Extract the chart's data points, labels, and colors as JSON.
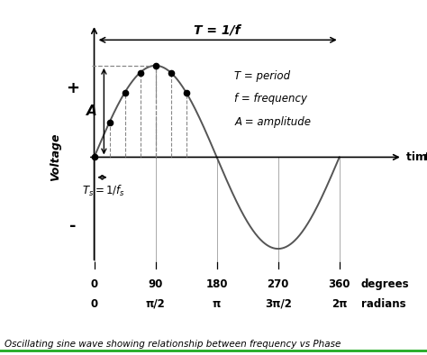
{
  "title": "Oscillating sine wave showing relationship between frequency vs Phase",
  "ylabel": "Voltage",
  "xlabel_time": "time,  t",
  "bg_color": "#ffffff",
  "wave_color": "#555555",
  "dot_color": "#000000",
  "dashed_color": "#888888",
  "label_T": "T = 1/f",
  "label_period": "T = period",
  "label_freq": "f = frequency",
  "label_amp": "A = amplitude",
  "label_A": "A",
  "label_plus": "+",
  "label_minus": "-",
  "deg_positions": [
    0,
    1.5707963,
    3.1415927,
    4.712389,
    6.2831853
  ],
  "deg_labels": [
    "0",
    "90",
    "180",
    "270",
    "360"
  ],
  "rad_labels": [
    "0",
    "π/2",
    "π",
    "3π/2",
    "2π"
  ],
  "dot_angles": [
    0.0,
    0.3927,
    0.7854,
    1.1781,
    1.5708,
    1.9635,
    2.3562
  ],
  "sample_period": 0.3927,
  "xlim": [
    -1.1,
    8.2
  ],
  "ylim": [
    -1.85,
    1.6
  ],
  "caption_color": "#000000",
  "underline_color": "#22aa22"
}
